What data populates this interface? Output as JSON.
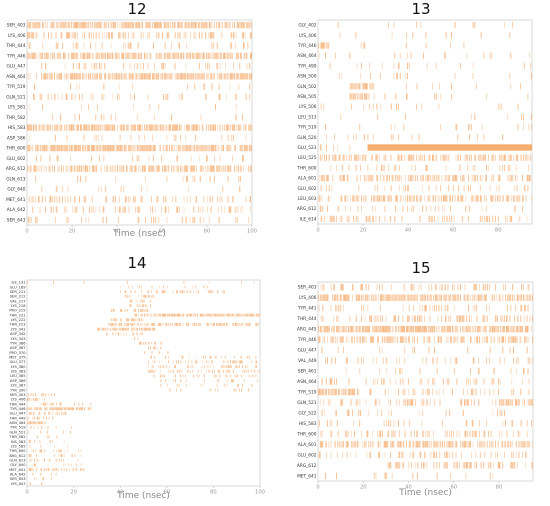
{
  "accent_color": "#f4a460",
  "chart_data": [
    {
      "type": "heatmap",
      "title": "12",
      "xlabel": "Time (nsec)",
      "xlim": [
        0,
        100
      ],
      "xticks": [
        0,
        20,
        40,
        60,
        80,
        100
      ],
      "rows": [
        {
          "label": "SER_403",
          "occupancy": [
            [
              0,
              100,
              0.75
            ]
          ]
        },
        {
          "label": "LYS_406",
          "occupancy": [
            [
              0,
              3,
              0.9
            ],
            [
              3,
              100,
              0.35
            ]
          ]
        },
        {
          "label": "THR_444",
          "occupancy": [
            [
              0,
              100,
              0.12
            ]
          ]
        },
        {
          "label": "TYR_446",
          "occupancy": [
            [
              0,
              100,
              0.7
            ]
          ]
        },
        {
          "label": "GLU_447",
          "occupancy": [
            [
              0,
              100,
              0.15
            ]
          ]
        },
        {
          "label": "ASN_464",
          "occupancy": [
            [
              0,
              6,
              0.2
            ],
            [
              6,
              100,
              0.8
            ]
          ]
        },
        {
          "label": "TYR_519",
          "occupancy": [
            [
              0,
              100,
              0.1
            ]
          ]
        },
        {
          "label": "GLN_521",
          "occupancy": [
            [
              0,
              100,
              0.15
            ]
          ]
        },
        {
          "label": "LYS_581",
          "occupancy": [
            [
              0,
              100,
              0.05
            ]
          ]
        },
        {
          "label": "THR_582",
          "occupancy": [
            [
              0,
              100,
              0.05
            ]
          ]
        },
        {
          "label": "HIS_583",
          "occupancy": [
            [
              0,
              100,
              0.7
            ]
          ]
        },
        {
          "label": "ASP_586",
          "occupancy": [
            [
              0,
              100,
              0.08
            ]
          ]
        },
        {
          "label": "THR_600",
          "occupancy": [
            [
              0,
              100,
              0.8
            ]
          ]
        },
        {
          "label": "GLU_602",
          "occupancy": [
            [
              0,
              100,
              0.12
            ]
          ]
        },
        {
          "label": "ARG_612",
          "occupancy": [
            [
              0,
              100,
              0.55
            ]
          ]
        },
        {
          "label": "GLN_613",
          "occupancy": [
            [
              0,
              100,
              0.1
            ]
          ]
        },
        {
          "label": "GLY_640",
          "occupancy": [
            [
              0,
              100,
              0.06
            ]
          ]
        },
        {
          "label": "MET_641",
          "occupancy": [
            [
              0,
              100,
              0.3
            ]
          ]
        },
        {
          "label": "ALA_642",
          "occupancy": [
            [
              0,
              100,
              0.25
            ]
          ]
        },
        {
          "label": "SER_643",
          "occupancy": [
            [
              0,
              100,
              0.12
            ]
          ]
        }
      ]
    },
    {
      "type": "heatmap",
      "title": "13",
      "xlabel": "",
      "xlim": [
        0,
        95
      ],
      "xticks": [
        0,
        20,
        40,
        60,
        80
      ],
      "rows": [
        {
          "label": "GLY_402",
          "occupancy": [
            [
              0,
              95,
              0.05
            ]
          ]
        },
        {
          "label": "LYS_406",
          "occupancy": [
            [
              0,
              95,
              0.05
            ]
          ]
        },
        {
          "label": "TYR_446",
          "occupancy": [
            [
              0,
              5,
              0.7
            ],
            [
              5,
              95,
              0.04
            ]
          ]
        },
        {
          "label": "ASN_464",
          "occupancy": [
            [
              0,
              95,
              0.06
            ]
          ]
        },
        {
          "label": "TYR_499",
          "occupancy": [
            [
              0,
              95,
              0.05
            ]
          ]
        },
        {
          "label": "ASN_500",
          "occupancy": [
            [
              0,
              95,
              0.06
            ]
          ]
        },
        {
          "label": "GLN_502",
          "occupancy": [
            [
              14,
              25,
              0.85
            ],
            [
              25,
              95,
              0.05
            ]
          ]
        },
        {
          "label": "ASN_505",
          "occupancy": [
            [
              14,
              22,
              0.8
            ],
            [
              22,
              95,
              0.04
            ]
          ]
        },
        {
          "label": "LYS_506",
          "occupancy": [
            [
              0,
              95,
              0.08
            ]
          ]
        },
        {
          "label": "LEU_513",
          "occupancy": [
            [
              0,
              95,
              0.06
            ]
          ]
        },
        {
          "label": "TYR_519",
          "occupancy": [
            [
              0,
              95,
              0.08
            ]
          ]
        },
        {
          "label": "GLN_520",
          "occupancy": [
            [
              0,
              95,
              0.1
            ]
          ]
        },
        {
          "label": "GLU_523",
          "occupancy": [
            [
              0,
              22,
              0.15
            ],
            [
              22,
              95,
              1.0
            ]
          ]
        },
        {
          "label": "LEU_525",
          "occupancy": [
            [
              0,
              95,
              0.45
            ]
          ]
        },
        {
          "label": "THR_600",
          "occupancy": [
            [
              0,
              95,
              0.12
            ]
          ]
        },
        {
          "label": "ALA_601",
          "occupancy": [
            [
              0,
              95,
              0.45
            ]
          ]
        },
        {
          "label": "GLU_602",
          "occupancy": [
            [
              0,
              95,
              0.15
            ]
          ]
        },
        {
          "label": "LEU_603",
          "occupancy": [
            [
              0,
              95,
              0.5
            ]
          ]
        },
        {
          "label": "ARG_612",
          "occupancy": [
            [
              0,
              95,
              0.1
            ]
          ]
        },
        {
          "label": "ILE_614",
          "occupancy": [
            [
              0,
              95,
              0.25
            ]
          ]
        }
      ]
    },
    {
      "type": "heatmap",
      "title": "14",
      "xlabel": "Time (nsec)",
      "xlim": [
        0,
        100
      ],
      "xticks": [
        0,
        20,
        40,
        60,
        80,
        100
      ],
      "rows": [
        {
          "label": "ILE_131",
          "occupancy": [
            [
              0,
              100,
              0.02
            ]
          ]
        },
        {
          "label": "GLU_189",
          "occupancy": [
            [
              40,
              80,
              0.1
            ]
          ]
        },
        {
          "label": "SER_211",
          "occupancy": [
            [
              40,
              85,
              0.3
            ]
          ]
        },
        {
          "label": "SER_212",
          "occupancy": [
            [
              42,
              55,
              0.5
            ]
          ]
        },
        {
          "label": "VAL_217",
          "occupancy": [
            [
              44,
              56,
              0.6
            ]
          ]
        },
        {
          "label": "LYS_218",
          "occupancy": [
            [
              44,
              54,
              0.5
            ]
          ]
        },
        {
          "label": "PRO_219",
          "occupancy": [
            [
              36,
              52,
              0.4
            ]
          ]
        },
        {
          "label": "THR_221",
          "occupancy": [
            [
              46,
              56,
              0.6
            ],
            [
              56,
              100,
              0.9
            ]
          ]
        },
        {
          "label": "LYS_222",
          "occupancy": [
            [
              36,
              52,
              0.6
            ]
          ]
        },
        {
          "label": "THR_223",
          "occupancy": [
            [
              35,
              48,
              0.5
            ],
            [
              48,
              100,
              0.55
            ]
          ]
        },
        {
          "label": "LYS_341",
          "occupancy": [
            [
              30,
              55,
              0.7
            ]
          ]
        },
        {
          "label": "ASP_342",
          "occupancy": [
            [
              34,
              50,
              0.5
            ]
          ]
        },
        {
          "label": "LYS_343",
          "occupancy": [
            [
              46,
              52,
              0.4
            ]
          ]
        },
        {
          "label": "TYR_366",
          "occupancy": [
            [
              48,
              58,
              0.3
            ]
          ]
        },
        {
          "label": "ASP_367",
          "occupancy": [
            [
              52,
              60,
              0.3
            ]
          ]
        },
        {
          "label": "PRO_370",
          "occupancy": [
            [
              50,
              62,
              0.2
            ]
          ]
        },
        {
          "label": "MET_375",
          "occupancy": [
            [
              52,
              100,
              0.2
            ]
          ]
        },
        {
          "label": "GLU_377",
          "occupancy": [
            [
              52,
              100,
              0.3
            ]
          ]
        },
        {
          "label": "LYS_380",
          "occupancy": [
            [
              52,
              100,
              0.35
            ]
          ]
        },
        {
          "label": "LYS_383",
          "occupancy": [
            [
              52,
              100,
              0.3
            ]
          ]
        },
        {
          "label": "LEU_385",
          "occupancy": [
            [
              52,
              100,
              0.25
            ]
          ]
        },
        {
          "label": "ASP_386",
          "occupancy": [
            [
              55,
              100,
              0.15
            ]
          ]
        },
        {
          "label": "LYS_387",
          "occupancy": [
            [
              55,
              100,
              0.12
            ]
          ]
        },
        {
          "label": "TYR_390",
          "occupancy": [
            [
              55,
              100,
              0.12
            ]
          ]
        },
        {
          "label": "SER_403",
          "occupancy": [
            [
              0,
              12,
              0.3
            ]
          ]
        },
        {
          "label": "LYS_406",
          "occupancy": [
            [
              0,
              8,
              0.4
            ],
            [
              8,
              12,
              0.3
            ]
          ]
        },
        {
          "label": "THR_444",
          "occupancy": [
            [
              0,
              28,
              0.25
            ]
          ]
        },
        {
          "label": "TYR_446",
          "occupancy": [
            [
              0,
              28,
              0.8
            ]
          ]
        },
        {
          "label": "GLU_447",
          "occupancy": [
            [
              0,
              18,
              0.3
            ]
          ]
        },
        {
          "label": "THR_449",
          "occupancy": [
            [
              0,
              12,
              0.25
            ]
          ]
        },
        {
          "label": "ASN_464",
          "occupancy": [
            [
              0,
              8,
              0.9
            ]
          ]
        },
        {
          "label": "TYR_519",
          "occupancy": [
            [
              0,
              20,
              0.12
            ]
          ]
        },
        {
          "label": "GLN_521",
          "occupancy": [
            [
              0,
              20,
              0.12
            ]
          ]
        },
        {
          "label": "THR_582",
          "occupancy": [
            [
              0,
              20,
              0.1
            ]
          ]
        },
        {
          "label": "HIS_583",
          "occupancy": [
            [
              0,
              20,
              0.15
            ]
          ]
        },
        {
          "label": "LYS_585",
          "occupancy": [
            [
              0,
              20,
              0.1
            ]
          ]
        },
        {
          "label": "THR_600",
          "occupancy": [
            [
              0,
              25,
              0.3
            ]
          ]
        },
        {
          "label": "ARG_612",
          "occupancy": [
            [
              0,
              25,
              0.25
            ]
          ]
        },
        {
          "label": "GLN_613",
          "occupancy": [
            [
              0,
              22,
              0.2
            ]
          ]
        },
        {
          "label": "GLY_640",
          "occupancy": [
            [
              0,
              25,
              0.15
            ]
          ]
        },
        {
          "label": "MET_641",
          "occupancy": [
            [
              0,
              25,
              0.3
            ]
          ]
        },
        {
          "label": "ALA_642",
          "occupancy": [
            [
              0,
              15,
              0.15
            ]
          ]
        },
        {
          "label": "SER_643",
          "occupancy": [
            [
              0,
              15,
              0.1
            ]
          ]
        },
        {
          "label": "LYS_647",
          "occupancy": [
            [
              0,
              10,
              0.08
            ]
          ]
        }
      ]
    },
    {
      "type": "heatmap",
      "title": "15",
      "xlabel": "Time (nsec)",
      "xlim": [
        0,
        95
      ],
      "xticks": [
        0,
        20,
        40,
        60,
        80
      ],
      "rows": [
        {
          "label": "SER_403",
          "occupancy": [
            [
              0,
              95,
              0.25
            ]
          ]
        },
        {
          "label": "LYS_406",
          "occupancy": [
            [
              0,
              95,
              0.7
            ]
          ]
        },
        {
          "label": "TYR_441",
          "occupancy": [
            [
              0,
              95,
              0.2
            ]
          ]
        },
        {
          "label": "THR_444",
          "occupancy": [
            [
              0,
              95,
              0.3
            ]
          ]
        },
        {
          "label": "ARG_445",
          "occupancy": [
            [
              0,
              95,
              0.75
            ]
          ]
        },
        {
          "label": "TYR_446",
          "occupancy": [
            [
              0,
              95,
              0.55
            ]
          ]
        },
        {
          "label": "GLU_447",
          "occupancy": [
            [
              0,
              95,
              0.1
            ]
          ]
        },
        {
          "label": "VAL_449",
          "occupancy": [
            [
              0,
              95,
              0.15
            ]
          ]
        },
        {
          "label": "SER_461",
          "occupancy": [
            [
              0,
              95,
              0.08
            ]
          ]
        },
        {
          "label": "ASN_464",
          "occupancy": [
            [
              0,
              95,
              0.15
            ]
          ]
        },
        {
          "label": "TYR_519",
          "occupancy": [
            [
              0,
              18,
              0.85
            ],
            [
              18,
              95,
              0.2
            ]
          ]
        },
        {
          "label": "GLN_521",
          "occupancy": [
            [
              0,
              80,
              0.25
            ],
            [
              80,
              95,
              0.8
            ]
          ]
        },
        {
          "label": "GLY_522",
          "occupancy": [
            [
              0,
              95,
              0.12
            ]
          ]
        },
        {
          "label": "HIS_583",
          "occupancy": [
            [
              0,
              95,
              0.12
            ]
          ]
        },
        {
          "label": "THR_600",
          "occupancy": [
            [
              0,
              95,
              0.3
            ]
          ]
        },
        {
          "label": "ALA_601",
          "occupancy": [
            [
              0,
              95,
              0.6
            ]
          ]
        },
        {
          "label": "GLU_602",
          "occupancy": [
            [
              0,
              95,
              0.2
            ]
          ]
        },
        {
          "label": "ARG_612",
          "occupancy": [
            [
              30,
              95,
              0.35
            ]
          ]
        },
        {
          "label": "MET_641",
          "occupancy": [
            [
              0,
              95,
              0.08
            ]
          ]
        }
      ]
    }
  ]
}
